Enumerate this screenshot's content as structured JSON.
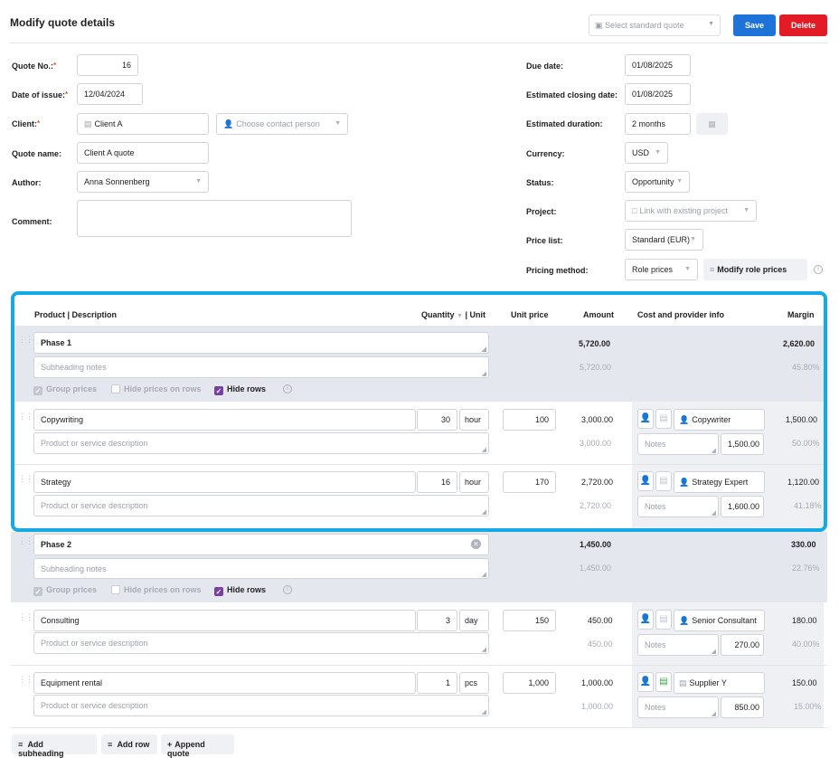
{
  "page": {
    "title": "Modify quote details"
  },
  "toolbar": {
    "standard_quote_placeholder": "Select standard quote",
    "save_label": "Save",
    "delete_label": "Delete"
  },
  "form": {
    "quote_no": {
      "label": "Quote No.:",
      "value": "16"
    },
    "date_of_issue": {
      "label": "Date of issue:",
      "value": "12/04/2024"
    },
    "client": {
      "label": "Client:",
      "value": "Client A",
      "contact_placeholder": "Choose contact person"
    },
    "quote_name": {
      "label": "Quote name:",
      "value": "Client A quote"
    },
    "author": {
      "label": "Author:",
      "value": "Anna Sonnenberg"
    },
    "comment": {
      "label": "Comment:",
      "value": ""
    },
    "due_date": {
      "label": "Due date:",
      "value": "01/08/2025"
    },
    "closing_date": {
      "label": "Estimated closing date:",
      "value": "01/08/2025"
    },
    "duration": {
      "label": "Estimated duration:",
      "value": "2 months"
    },
    "currency": {
      "label": "Currency:",
      "value": "USD"
    },
    "status": {
      "label": "Status:",
      "value": "Opportunity"
    },
    "project": {
      "label": "Project:",
      "value": "Link with existing project"
    },
    "price_list": {
      "label": "Price list:",
      "value": "Standard (EUR)"
    },
    "pricing_method": {
      "label": "Pricing method:",
      "value": "Role prices",
      "modify_label": "Modify role prices"
    }
  },
  "table": {
    "headers": {
      "product": "Product | Description",
      "quantity": "Quantity",
      "unit": "| Unit",
      "unit_price": "Unit price",
      "amount": "Amount",
      "cost": "Cost and provider info",
      "margin": "Margin"
    },
    "subheading_placeholder": "Subheading notes",
    "desc_placeholder": "Product or service description",
    "notes_placeholder": "Notes",
    "group_prices": "Group prices",
    "hide_prices": "Hide prices on rows",
    "hide_rows": "Hide rows",
    "phases": [
      {
        "name": "Phase 1",
        "amount": "5,720.00",
        "amount_sub": "5,720.00",
        "margin": "2,620.00",
        "margin_pct": "45.80%",
        "rows": [
          {
            "name": "Copywriting",
            "qty": "30",
            "unit": "hour",
            "price": "100",
            "amount": "3,000.00",
            "amount_sub": "3,000.00",
            "provider": "Copywriter",
            "cost": "1,500.00",
            "margin": "1,500.00",
            "margin_pct": "50.00%"
          },
          {
            "name": "Strategy",
            "qty": "16",
            "unit": "hour",
            "price": "170",
            "amount": "2,720.00",
            "amount_sub": "2,720.00",
            "provider": "Strategy Expert",
            "cost": "1,600.00",
            "margin": "1,120.00",
            "margin_pct": "41.18%"
          }
        ]
      },
      {
        "name": "Phase 2",
        "amount": "1,450.00",
        "amount_sub": "1,450.00",
        "margin": "330.00",
        "margin_pct": "22.76%",
        "rows": [
          {
            "name": "Consulting",
            "qty": "3",
            "unit": "day",
            "price": "150",
            "amount": "450.00",
            "amount_sub": "450.00",
            "provider": "Senior Consultant",
            "cost": "270.00",
            "margin": "180.00",
            "margin_pct": "40.00%"
          },
          {
            "name": "Equipment rental",
            "qty": "1",
            "unit": "pcs",
            "price": "1,000",
            "amount": "1,000.00",
            "amount_sub": "1,000.00",
            "provider": "Supplier Y",
            "cost": "850.00",
            "margin": "150.00",
            "margin_pct": "15.00%"
          }
        ]
      }
    ]
  },
  "footer": {
    "add_subheading": "Add subheading",
    "add_row": "Add row",
    "append_quote": "Append quote"
  }
}
